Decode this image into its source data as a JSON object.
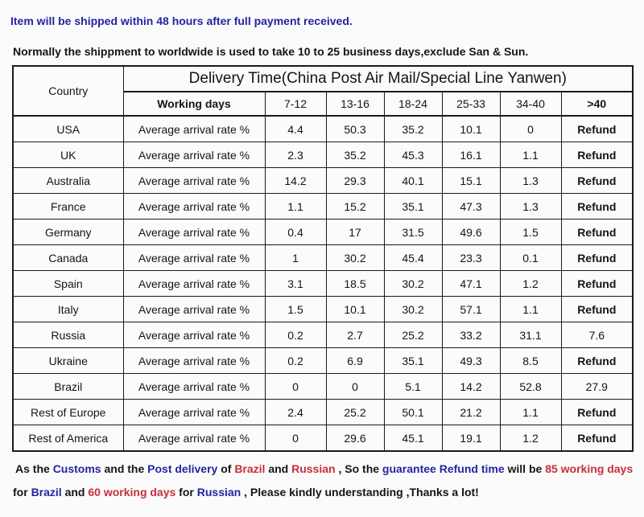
{
  "notices": {
    "line1": "Item will be shipped within 48 hours after full payment received.",
    "line2": "Normally the shippment to worldwide is used to take 10 to 25 business days,exclude San & Sun."
  },
  "table": {
    "corner_header": "Country",
    "main_header": "Delivery Time(China Post Air Mail/Special Line Yanwen)",
    "sub_headers": [
      "Working days",
      "7-12",
      "13-16",
      "18-24",
      "25-33",
      "34-40",
      ">40"
    ],
    "row_label": "Average arrival rate %",
    "rows": [
      {
        "country": "USA",
        "values": [
          "4.4",
          "50.3",
          "35.2",
          "10.1",
          "0",
          "Refund"
        ]
      },
      {
        "country": "UK",
        "values": [
          "2.3",
          "35.2",
          "45.3",
          "16.1",
          "1.1",
          "Refund"
        ]
      },
      {
        "country": "Australia",
        "values": [
          "14.2",
          "29.3",
          "40.1",
          "15.1",
          "1.3",
          "Refund"
        ]
      },
      {
        "country": "France",
        "values": [
          "1.1",
          "15.2",
          "35.1",
          "47.3",
          "1.3",
          "Refund"
        ]
      },
      {
        "country": "Germany",
        "values": [
          "0.4",
          "17",
          "31.5",
          "49.6",
          "1.5",
          "Refund"
        ]
      },
      {
        "country": "Canada",
        "values": [
          "1",
          "30.2",
          "45.4",
          "23.3",
          "0.1",
          "Refund"
        ]
      },
      {
        "country": "Spain",
        "values": [
          "3.1",
          "18.5",
          "30.2",
          "47.1",
          "1.2",
          "Refund"
        ]
      },
      {
        "country": "Italy",
        "values": [
          "1.5",
          "10.1",
          "30.2",
          "57.1",
          "1.1",
          "Refund"
        ]
      },
      {
        "country": "Russia",
        "values": [
          "0.2",
          "2.7",
          "25.2",
          "33.2",
          "31.1",
          "7.6"
        ]
      },
      {
        "country": "Ukraine",
        "values": [
          "0.2",
          "6.9",
          "35.1",
          "49.3",
          "8.5",
          "Refund"
        ]
      },
      {
        "country": "Brazil",
        "values": [
          "0",
          "0",
          "5.1",
          "14.2",
          "52.8",
          "27.9"
        ]
      },
      {
        "country": "Rest of Europe",
        "values": [
          "2.4",
          "25.2",
          "50.1",
          "21.2",
          "1.1",
          "Refund"
        ]
      },
      {
        "country": "Rest of America",
        "values": [
          "0",
          "29.6",
          "45.1",
          "19.1",
          "1.2",
          "Refund"
        ]
      }
    ]
  },
  "footer": {
    "line1_segments": [
      {
        "text": "As the ",
        "color": "black"
      },
      {
        "text": "Customs",
        "color": "blue"
      },
      {
        "text": " and the ",
        "color": "black"
      },
      {
        "text": "Post delivery",
        "color": "blue"
      },
      {
        "text": " of ",
        "color": "black"
      },
      {
        "text": "Brazil",
        "color": "red"
      },
      {
        "text": " and ",
        "color": "black"
      },
      {
        "text": "Russian",
        "color": "red"
      },
      {
        "text": " , So the ",
        "color": "black"
      },
      {
        "text": "guarantee Refund time",
        "color": "blue"
      },
      {
        "text": " will be ",
        "color": "black"
      },
      {
        "text": "85 working days",
        "color": "red"
      }
    ],
    "line2_segments": [
      {
        "text": "for ",
        "color": "black"
      },
      {
        "text": "Brazil",
        "color": "blue"
      },
      {
        "text": " and ",
        "color": "black"
      },
      {
        "text": "60 working days",
        "color": "red"
      },
      {
        "text": " for ",
        "color": "black"
      },
      {
        "text": "Russian",
        "color": "blue"
      },
      {
        "text": " , Please kindly understanding ,Thanks a lot!",
        "color": "black"
      }
    ]
  },
  "colors": {
    "blue": "#2424a3",
    "red": "#c62f3c",
    "black": "#141414"
  }
}
